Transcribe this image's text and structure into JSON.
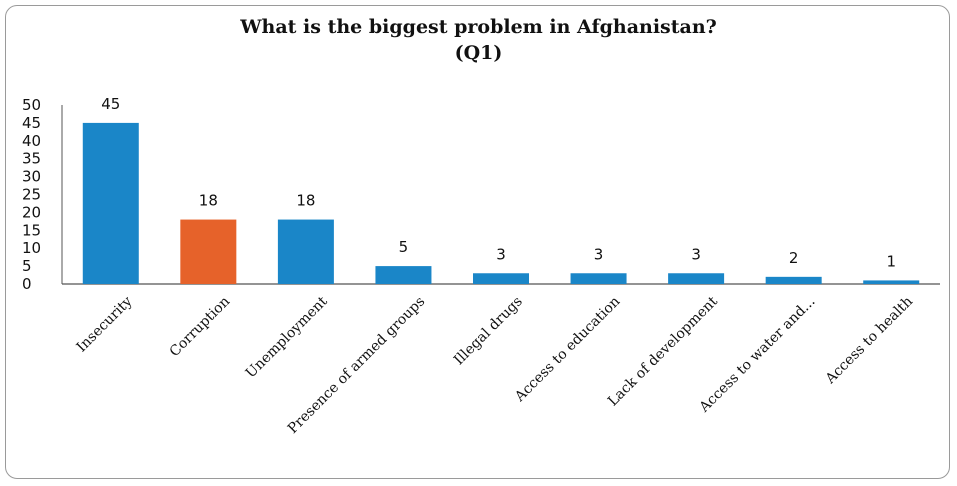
{
  "chart_data": {
    "type": "bar",
    "title": "What is the biggest problem in Afghanistan?",
    "subtitle": "(Q1)",
    "categories": [
      "Insecurity",
      "Corruption",
      "Unemployment",
      "Presence of armed groups",
      "Illegal drugs",
      "Access to education",
      "Lack of development",
      "Access to water and...",
      "Access to health"
    ],
    "values": [
      45,
      18,
      18,
      5,
      3,
      3,
      3,
      2,
      1
    ],
    "data_labels": [
      "45",
      "18",
      "18",
      "5",
      "3",
      "3",
      "3",
      "2",
      "1"
    ],
    "yticks": [
      "0",
      "5",
      "10",
      "15",
      "20",
      "25",
      "30",
      "35",
      "40",
      "45",
      "50"
    ],
    "ylim": [
      0,
      50
    ],
    "grid": false,
    "legend": "none",
    "colors": {
      "default": "#1a86c8",
      "highlight": "#e6622a",
      "highlight_categories": [
        "Corruption"
      ]
    }
  }
}
